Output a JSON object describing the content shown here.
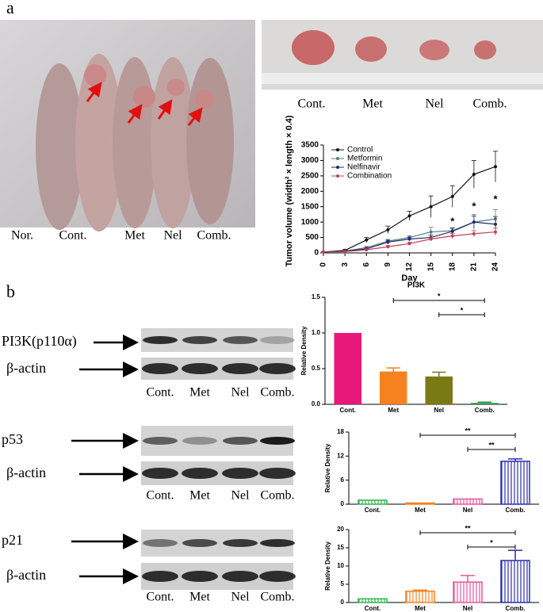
{
  "panel_a": {
    "label": "a",
    "mouse_labels": [
      "Nor.",
      "Cont.",
      "Met",
      "Nel",
      "Comb."
    ],
    "tumor_labels": [
      "Cont.",
      "Met",
      "Nel",
      "Comb."
    ]
  },
  "panel_b": {
    "label": "b",
    "blots": [
      {
        "target": "PI3K(p110α)",
        "control": "β-actin",
        "lanes": [
          "Cont.",
          "Met",
          "Nel",
          "Comb."
        ]
      },
      {
        "target": "p53",
        "control": "β-actin",
        "lanes": [
          "Cont.",
          "Met",
          "Nel",
          "Comb."
        ]
      },
      {
        "target": "p21",
        "control": "β-actin",
        "lanes": [
          "Cont.",
          "Met",
          "Nel",
          "Comb."
        ]
      }
    ]
  },
  "chart_data": [
    {
      "type": "line",
      "x_label": "Day",
      "y_label": "Tumor volume (width² × length × 0.4)",
      "x": [
        0,
        3,
        6,
        9,
        12,
        15,
        18,
        21,
        24
      ],
      "series": [
        {
          "name": "Control",
          "color": "#111111",
          "values": [
            30,
            80,
            420,
            750,
            1200,
            1500,
            1830,
            2550,
            2800
          ],
          "errors": [
            10,
            30,
            80,
            120,
            150,
            350,
            350,
            450,
            500
          ]
        },
        {
          "name": "Metformin",
          "color": "#5b7d7d",
          "values": [
            30,
            60,
            170,
            380,
            500,
            680,
            720,
            1000,
            1100
          ],
          "errors": [
            10,
            20,
            40,
            60,
            60,
            150,
            100,
            250,
            300
          ]
        },
        {
          "name": "Nelfinavir",
          "color": "#1f2a66",
          "values": [
            30,
            60,
            130,
            350,
            450,
            500,
            700,
            1000,
            930
          ],
          "errors": [
            10,
            20,
            30,
            60,
            60,
            80,
            100,
            200,
            250
          ]
        },
        {
          "name": "Combination",
          "color": "#c0405a",
          "values": [
            30,
            40,
            100,
            200,
            300,
            450,
            550,
            620,
            680
          ],
          "errors": [
            10,
            10,
            30,
            40,
            50,
            60,
            80,
            100,
            120
          ]
        }
      ],
      "annotations": [
        {
          "text": "*",
          "x": 18,
          "y": 1000
        },
        {
          "text": "*",
          "x": 21,
          "y": 1490
        },
        {
          "text": "*",
          "x": 24,
          "y": 1720
        }
      ],
      "xlim": [
        0,
        24
      ],
      "xticks": [
        0,
        3,
        6,
        9,
        12,
        15,
        18,
        21,
        24
      ],
      "ylim": [
        0,
        3500
      ],
      "yticks": [
        0,
        500,
        1000,
        1500,
        2000,
        2500,
        3000,
        3500
      ],
      "legend": "top-left"
    },
    {
      "type": "bar",
      "title": "PI3K",
      "y_label": "Relative Density",
      "categories": [
        "Cont.",
        "Met",
        "Nel",
        "Comb."
      ],
      "values": [
        1.0,
        0.46,
        0.39,
        0.02
      ],
      "errors": [
        0,
        0.05,
        0.06,
        0.01
      ],
      "colors": [
        "#e8177a",
        "#f5821f",
        "#7a7a14",
        "#2e9a4a"
      ],
      "hatched": false,
      "ylim": [
        0,
        1.5
      ],
      "yticks": [
        {
          "value": 0,
          "label": "0.0"
        },
        {
          "value": 0.5,
          "label": "0.5"
        },
        {
          "value": 1,
          "label": "1.0"
        },
        {
          "value": 1.5,
          "label": "1.5"
        }
      ],
      "brackets": [
        {
          "from": 1,
          "to": 3,
          "label": "*"
        },
        {
          "from": 2,
          "to": 3,
          "label": "*"
        }
      ]
    },
    {
      "type": "bar",
      "y_label": "Relative Density",
      "categories": [
        "Cont.",
        "Met",
        "Nel",
        "Comb."
      ],
      "values": [
        1.0,
        0.3,
        1.3,
        10.7
      ],
      "errors": [
        0,
        0,
        0,
        0.6
      ],
      "colors": [
        "#2fb34a",
        "#f5821f",
        "#e8559a",
        "#2b2fb0"
      ],
      "hatched": true,
      "ylim": [
        0,
        18
      ],
      "yticks": [
        0,
        6,
        12,
        18
      ],
      "brackets": [
        {
          "from": 1,
          "to": 3,
          "label": "**"
        },
        {
          "from": 2,
          "to": 3,
          "label": "**"
        }
      ]
    },
    {
      "type": "bar",
      "y_label": "Relative Density",
      "categories": [
        "Cont.",
        "Met",
        "Nel",
        "Comb."
      ],
      "values": [
        1.0,
        3.1,
        5.6,
        11.5
      ],
      "errors": [
        0,
        0.3,
        1.8,
        2.8
      ],
      "colors": [
        "#2fb34a",
        "#f5821f",
        "#e8559a",
        "#2b2fb0"
      ],
      "hatched": true,
      "ylim": [
        0,
        20
      ],
      "yticks": [
        0,
        5,
        10,
        15,
        20
      ],
      "brackets": [
        {
          "from": 1,
          "to": 3,
          "label": "**"
        },
        {
          "from": 2,
          "to": 3,
          "label": "*"
        }
      ]
    }
  ]
}
